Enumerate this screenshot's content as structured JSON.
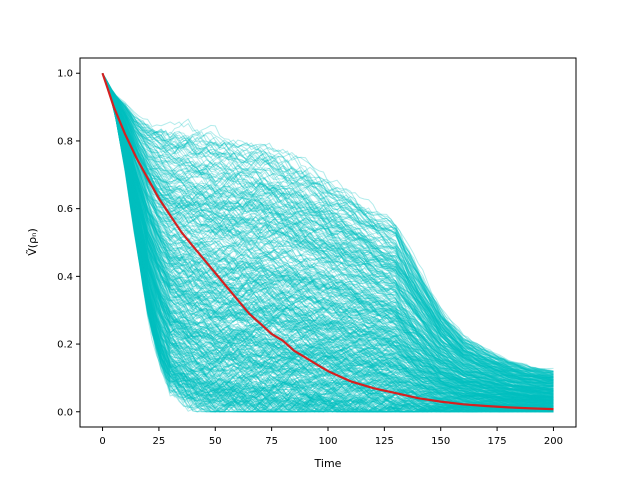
{
  "chart_data": {
    "type": "line",
    "title": "",
    "xlabel": "Time",
    "ylabel": "Ṽ(ρₙ)",
    "xlim": [
      -10,
      210
    ],
    "ylim": [
      -0.045,
      1.045
    ],
    "xticks": [
      0,
      25,
      50,
      75,
      100,
      125,
      150,
      175,
      200
    ],
    "yticks": [
      0.0,
      0.2,
      0.4,
      0.6,
      0.8,
      1.0
    ],
    "ytick_labels": [
      "0.0",
      "0.2",
      "0.4",
      "0.6",
      "0.8",
      "1.0"
    ],
    "grid": false,
    "legend": "none",
    "series": [
      {
        "role": "mean",
        "color": "#d62020",
        "x": [
          0,
          2,
          5,
          10,
          15,
          20,
          25,
          30,
          35,
          40,
          45,
          50,
          55,
          60,
          65,
          70,
          75,
          80,
          85,
          90,
          95,
          100,
          110,
          120,
          130,
          140,
          150,
          160,
          170,
          180,
          190,
          200
        ],
        "y": [
          1.0,
          0.96,
          0.9,
          0.82,
          0.75,
          0.69,
          0.63,
          0.58,
          0.53,
          0.49,
          0.45,
          0.41,
          0.37,
          0.33,
          0.29,
          0.26,
          0.23,
          0.21,
          0.18,
          0.16,
          0.14,
          0.12,
          0.09,
          0.07,
          0.055,
          0.04,
          0.03,
          0.022,
          0.017,
          0.013,
          0.01,
          0.008
        ]
      },
      {
        "role": "trajectories-ensemble",
        "color": "#00bfbf",
        "count": 500,
        "x": [
          0,
          5,
          10,
          15,
          20,
          25,
          30,
          40,
          50,
          60,
          70,
          80,
          90,
          100,
          110,
          120,
          130,
          140,
          150,
          160,
          170,
          180,
          190,
          200
        ],
        "upper_envelope": [
          1.0,
          0.94,
          0.91,
          0.87,
          0.85,
          0.84,
          0.83,
          0.82,
          0.8,
          0.79,
          0.78,
          0.75,
          0.72,
          0.68,
          0.64,
          0.59,
          0.55,
          0.42,
          0.3,
          0.22,
          0.18,
          0.15,
          0.13,
          0.12
        ],
        "lower_envelope": [
          1.0,
          0.9,
          0.72,
          0.5,
          0.3,
          0.16,
          0.08,
          0.03,
          0.01,
          0.005,
          0.002,
          0.001,
          0.0,
          0.0,
          0.0,
          0.0,
          0.0,
          0.0,
          0.0,
          0.0,
          0.0,
          0.0,
          0.0,
          0.0
        ]
      }
    ]
  }
}
